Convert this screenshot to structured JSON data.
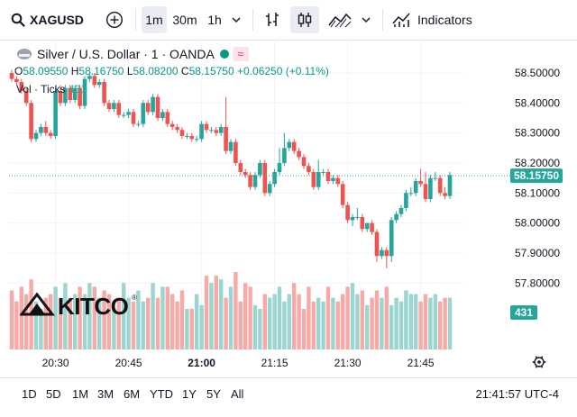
{
  "toolbar": {
    "symbol": "XAGUSD",
    "intervals": [
      "1m",
      "30m",
      "1h"
    ],
    "active_interval": "1m",
    "indicators_label": "Indicators"
  },
  "legend": {
    "title": "Silver / U.S. Dollar · 1 · OANDA",
    "ohlc": {
      "o_label": "O",
      "o": "58.09550",
      "h_label": "H",
      "h": "58.16750",
      "l_label": "L",
      "l": "58.08200",
      "c_label": "C",
      "c": "58.15750",
      "change": "+0.06250 (+0.11%)"
    },
    "volume_label": "Vol · Ticks",
    "volume_value": "431",
    "badge_wave": "≈"
  },
  "logo_text": "KITCO",
  "bottom": {
    "ranges": [
      "1D",
      "5D",
      "1M",
      "3M",
      "6M",
      "YTD",
      "1Y",
      "5Y",
      "All"
    ],
    "clock": "21:41:57 UTC-4"
  },
  "colors": {
    "up": "#26a69a",
    "down": "#ef5350",
    "up_vol": "#9bd5d0",
    "down_vol": "#f6a9a7",
    "accent": "#089981"
  },
  "icons": [
    "search-icon",
    "add-symbol-icon",
    "chevron-down-icon",
    "bar-type-icon",
    "candles-icon",
    "area-chart-icon",
    "indicators-icon",
    "settings-icon"
  ],
  "chart_data": {
    "type": "candlestick",
    "x_ticks": [
      "20:30",
      "20:45",
      "21:00",
      "21:15",
      "21:30",
      "21:45"
    ],
    "y_ticks": [
      "58.50000",
      "58.40000",
      "58.30000",
      "58.20000",
      "58.10000",
      "58.00000",
      "57.90000",
      "57.80000"
    ],
    "ylim": [
      57.77,
      58.55
    ],
    "last_price": "58.15750",
    "last_volume": "431",
    "x_start": "20:21",
    "interval_minutes": 1,
    "opens": [
      58.5,
      58.48,
      58.47,
      58.44,
      58.4,
      58.28,
      58.3,
      58.32,
      58.3,
      58.29,
      58.44,
      58.4,
      58.45,
      58.41,
      58.45,
      58.39,
      58.48,
      58.49,
      58.46,
      58.47,
      58.4,
      58.38,
      58.4,
      58.36,
      58.36,
      58.37,
      58.33,
      58.33,
      58.4,
      58.37,
      58.42,
      58.35,
      58.37,
      58.33,
      58.32,
      58.31,
      58.29,
      58.29,
      58.28,
      58.28,
      58.33,
      58.31,
      58.31,
      58.3,
      58.32,
      58.24,
      58.27,
      58.2,
      58.17,
      58.16,
      58.12,
      58.16,
      58.2,
      58.1,
      58.13,
      58.17,
      58.2,
      58.25,
      58.27,
      58.24,
      58.22,
      58.19,
      58.17,
      58.12,
      58.17,
      58.17,
      58.14,
      58.15,
      58.13,
      58.06,
      58.01,
      58.02,
      58.02,
      57.98,
      58.0,
      57.97,
      57.89,
      57.91,
      57.89,
      58.01,
      58.03,
      58.05,
      58.1,
      58.1,
      58.14,
      58.13,
      58.08,
      58.15,
      58.15,
      58.1,
      58.09
    ],
    "closes": [
      58.48,
      58.47,
      58.44,
      58.4,
      58.28,
      58.3,
      58.32,
      58.3,
      58.29,
      58.44,
      58.4,
      58.45,
      58.41,
      58.45,
      58.39,
      58.48,
      58.49,
      58.46,
      58.47,
      58.4,
      58.38,
      58.4,
      58.36,
      58.36,
      58.37,
      58.33,
      58.33,
      58.4,
      58.37,
      58.42,
      58.35,
      58.37,
      58.33,
      58.32,
      58.31,
      58.29,
      58.29,
      58.28,
      58.28,
      58.33,
      58.31,
      58.31,
      58.3,
      58.32,
      58.24,
      58.27,
      58.2,
      58.17,
      58.16,
      58.12,
      58.16,
      58.2,
      58.1,
      58.13,
      58.17,
      58.2,
      58.25,
      58.27,
      58.24,
      58.22,
      58.19,
      58.17,
      58.12,
      58.17,
      58.17,
      58.14,
      58.15,
      58.13,
      58.06,
      58.01,
      58.02,
      58.02,
      57.98,
      58.0,
      57.97,
      57.89,
      57.91,
      57.89,
      58.01,
      58.03,
      58.05,
      58.1,
      58.1,
      58.14,
      58.13,
      58.08,
      58.15,
      58.15,
      58.1,
      58.09,
      58.16
    ],
    "highs": [
      58.51,
      58.49,
      58.48,
      58.45,
      58.41,
      58.31,
      58.33,
      58.34,
      58.31,
      58.45,
      58.46,
      58.46,
      58.46,
      58.46,
      58.46,
      58.49,
      58.5,
      58.5,
      58.48,
      58.48,
      58.41,
      58.41,
      58.41,
      58.37,
      58.38,
      58.38,
      58.34,
      58.41,
      58.41,
      58.43,
      58.43,
      58.38,
      58.38,
      58.34,
      58.33,
      58.32,
      58.3,
      58.3,
      58.29,
      58.34,
      58.34,
      58.32,
      58.32,
      58.33,
      58.42,
      58.28,
      58.28,
      58.21,
      58.18,
      58.17,
      58.17,
      58.21,
      58.21,
      58.14,
      58.18,
      58.25,
      58.3,
      58.28,
      58.28,
      58.25,
      58.23,
      58.2,
      58.18,
      58.21,
      58.18,
      58.18,
      58.16,
      58.16,
      58.14,
      58.07,
      58.03,
      58.05,
      58.03,
      57.99,
      58.01,
      57.98,
      57.92,
      57.92,
      58.02,
      58.04,
      58.06,
      58.11,
      58.12,
      58.15,
      58.18,
      58.17,
      58.16,
      58.17,
      58.16,
      58.12,
      58.17
    ],
    "lows": [
      58.47,
      58.46,
      58.43,
      58.39,
      58.27,
      58.27,
      58.29,
      58.29,
      58.28,
      58.28,
      58.39,
      58.39,
      58.4,
      58.4,
      58.38,
      58.38,
      58.47,
      58.45,
      58.45,
      58.39,
      58.37,
      58.37,
      58.35,
      58.35,
      58.35,
      58.32,
      58.32,
      58.32,
      58.36,
      58.36,
      58.34,
      58.34,
      58.32,
      58.31,
      58.3,
      58.28,
      58.28,
      58.27,
      58.27,
      58.27,
      58.3,
      58.3,
      58.29,
      58.29,
      58.23,
      58.23,
      58.19,
      58.16,
      58.15,
      58.11,
      58.11,
      58.15,
      58.09,
      58.09,
      58.12,
      58.16,
      58.19,
      58.24,
      58.23,
      58.21,
      58.18,
      58.16,
      58.11,
      58.11,
      58.16,
      58.13,
      58.13,
      58.12,
      58.05,
      58.0,
      57.99,
      58.01,
      57.97,
      57.97,
      57.96,
      57.87,
      57.88,
      57.85,
      57.87,
      58.0,
      58.02,
      58.04,
      58.09,
      58.09,
      58.12,
      58.07,
      58.07,
      58.14,
      58.09,
      58.08,
      58.08
    ],
    "volumes": [
      16,
      13,
      17,
      15,
      19,
      13,
      11,
      14,
      15,
      17,
      14,
      18,
      14,
      15,
      17,
      15,
      18,
      17,
      14,
      16,
      15,
      11,
      14,
      18,
      14,
      13,
      16,
      13,
      14,
      18,
      14,
      17,
      17,
      15,
      13,
      16,
      11,
      11,
      15,
      12,
      20,
      18,
      20,
      19,
      14,
      17,
      21,
      13,
      18,
      17,
      12,
      11,
      15,
      14,
      15,
      17,
      13,
      15,
      18,
      15,
      11,
      17,
      13,
      14,
      13,
      17,
      14,
      13,
      15,
      17,
      18,
      15,
      16,
      12,
      14,
      16,
      14,
      17,
      12,
      14,
      13,
      16,
      15,
      15,
      13,
      15,
      14,
      15,
      13,
      14,
      14
    ]
  }
}
